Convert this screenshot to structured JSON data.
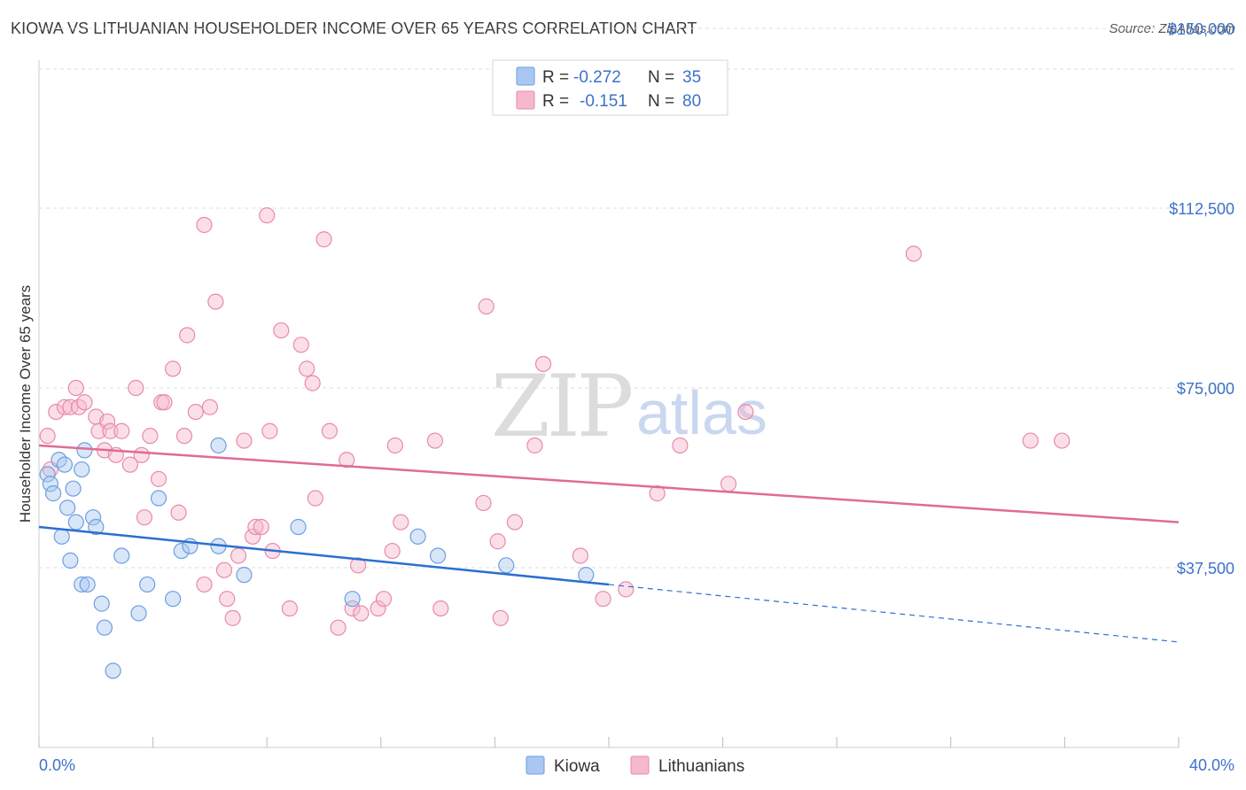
{
  "header": {
    "title": "KIOWA VS LITHUANIAN HOUSEHOLDER INCOME OVER 65 YEARS CORRELATION CHART",
    "source": "Source: ZipAtlas.com"
  },
  "watermark": {
    "zip": "ZIP",
    "atlas": "atlas"
  },
  "legend_top": {
    "rows": [
      {
        "r_label": "R =",
        "r_value": "-0.272",
        "n_label": "N =",
        "n_value": "35",
        "color": "#a9c7f0"
      },
      {
        "r_label": "R =",
        "r_value": "-0.151",
        "n_label": "N =",
        "n_value": "80",
        "color": "#f6b8cc"
      }
    ]
  },
  "legend_bottom": {
    "series1": "Kiowa",
    "series2": "Lithuanians"
  },
  "colors": {
    "kiowa_fill": "#a9c7f0",
    "kiowa_stroke": "#6d9fe0",
    "kiowa_line": "#2a6fd1",
    "lith_fill": "#f6b8cc",
    "lith_stroke": "#e88aaa",
    "lith_line": "#e06b96",
    "axis_label": "#3d72c9",
    "grid": "#dddddd"
  },
  "chart_data": {
    "type": "scatter",
    "title": "KIOWA VS LITHUANIAN HOUSEHOLDER INCOME OVER 65 YEARS CORRELATION CHART",
    "xlabel": "",
    "ylabel": "Householder Income Over 65 years",
    "xlim": [
      0,
      40
    ],
    "ylim": [
      0,
      155000
    ],
    "x_tick_labels": [
      "0.0%",
      "40.0%"
    ],
    "y_ticks": [
      37500,
      75000,
      112500,
      150000
    ],
    "y_tick_labels": [
      "$37,500",
      "$75,000",
      "$112,500",
      "$150,000"
    ],
    "series": [
      {
        "name": "Kiowa",
        "R": -0.272,
        "N": 35,
        "trend": {
          "x0": 0,
          "y0": 46000,
          "x1": 20,
          "y1": 34000,
          "dash_to_x": 40,
          "dash_to_y": 22000
        },
        "points": [
          [
            0.3,
            57000
          ],
          [
            0.4,
            55000
          ],
          [
            0.5,
            53000
          ],
          [
            0.7,
            60000
          ],
          [
            0.8,
            44000
          ],
          [
            0.9,
            59000
          ],
          [
            1.0,
            50000
          ],
          [
            1.1,
            39000
          ],
          [
            1.2,
            54000
          ],
          [
            1.3,
            47000
          ],
          [
            1.5,
            58000
          ],
          [
            1.5,
            34000
          ],
          [
            1.6,
            62000
          ],
          [
            1.7,
            34000
          ],
          [
            1.9,
            48000
          ],
          [
            2.0,
            46000
          ],
          [
            2.2,
            30000
          ],
          [
            2.3,
            25000
          ],
          [
            2.6,
            16000
          ],
          [
            2.9,
            40000
          ],
          [
            3.5,
            28000
          ],
          [
            3.8,
            34000
          ],
          [
            4.2,
            52000
          ],
          [
            4.7,
            31000
          ],
          [
            5.0,
            41000
          ],
          [
            5.3,
            42000
          ],
          [
            6.3,
            42000
          ],
          [
            6.3,
            63000
          ],
          [
            7.2,
            36000
          ],
          [
            9.1,
            46000
          ],
          [
            11.0,
            31000
          ],
          [
            13.3,
            44000
          ],
          [
            14.0,
            40000
          ],
          [
            16.4,
            38000
          ],
          [
            19.2,
            36000
          ]
        ]
      },
      {
        "name": "Lithuanians",
        "R": -0.151,
        "N": 80,
        "trend": {
          "x0": 0,
          "y0": 63000,
          "x1": 40,
          "y1": 47000
        },
        "points": [
          [
            0.3,
            65000
          ],
          [
            0.4,
            58000
          ],
          [
            0.6,
            70000
          ],
          [
            0.9,
            71000
          ],
          [
            1.1,
            71000
          ],
          [
            1.3,
            75000
          ],
          [
            1.4,
            71000
          ],
          [
            1.6,
            72000
          ],
          [
            2.0,
            69000
          ],
          [
            2.1,
            66000
          ],
          [
            2.3,
            62000
          ],
          [
            2.4,
            68000
          ],
          [
            2.5,
            66000
          ],
          [
            2.7,
            61000
          ],
          [
            2.9,
            66000
          ],
          [
            3.2,
            59000
          ],
          [
            3.4,
            75000
          ],
          [
            3.6,
            61000
          ],
          [
            3.7,
            48000
          ],
          [
            3.9,
            65000
          ],
          [
            4.2,
            56000
          ],
          [
            4.3,
            72000
          ],
          [
            4.4,
            72000
          ],
          [
            4.7,
            79000
          ],
          [
            4.9,
            49000
          ],
          [
            5.1,
            65000
          ],
          [
            5.2,
            86000
          ],
          [
            5.5,
            70000
          ],
          [
            5.8,
            34000
          ],
          [
            5.8,
            109000
          ],
          [
            6.0,
            71000
          ],
          [
            6.2,
            93000
          ],
          [
            6.5,
            37000
          ],
          [
            6.6,
            31000
          ],
          [
            6.8,
            27000
          ],
          [
            7.0,
            40000
          ],
          [
            7.2,
            64000
          ],
          [
            7.5,
            44000
          ],
          [
            7.6,
            46000
          ],
          [
            7.8,
            46000
          ],
          [
            8.0,
            111000
          ],
          [
            8.1,
            66000
          ],
          [
            8.2,
            41000
          ],
          [
            8.5,
            87000
          ],
          [
            8.8,
            29000
          ],
          [
            9.2,
            84000
          ],
          [
            9.4,
            79000
          ],
          [
            9.6,
            76000
          ],
          [
            9.7,
            52000
          ],
          [
            10.0,
            106000
          ],
          [
            10.2,
            66000
          ],
          [
            10.5,
            25000
          ],
          [
            10.8,
            60000
          ],
          [
            11.0,
            29000
          ],
          [
            11.2,
            38000
          ],
          [
            11.3,
            28000
          ],
          [
            11.9,
            29000
          ],
          [
            12.1,
            31000
          ],
          [
            12.4,
            41000
          ],
          [
            12.5,
            63000
          ],
          [
            12.7,
            47000
          ],
          [
            13.9,
            64000
          ],
          [
            14.1,
            29000
          ],
          [
            15.6,
            51000
          ],
          [
            15.7,
            92000
          ],
          [
            16.1,
            43000
          ],
          [
            16.2,
            27000
          ],
          [
            16.7,
            47000
          ],
          [
            17.4,
            63000
          ],
          [
            17.7,
            80000
          ],
          [
            19.0,
            40000
          ],
          [
            19.8,
            31000
          ],
          [
            20.6,
            33000
          ],
          [
            21.7,
            53000
          ],
          [
            22.5,
            63000
          ],
          [
            24.2,
            55000
          ],
          [
            24.8,
            70000
          ],
          [
            30.7,
            103000
          ],
          [
            34.8,
            64000
          ],
          [
            35.9,
            64000
          ]
        ]
      }
    ]
  }
}
